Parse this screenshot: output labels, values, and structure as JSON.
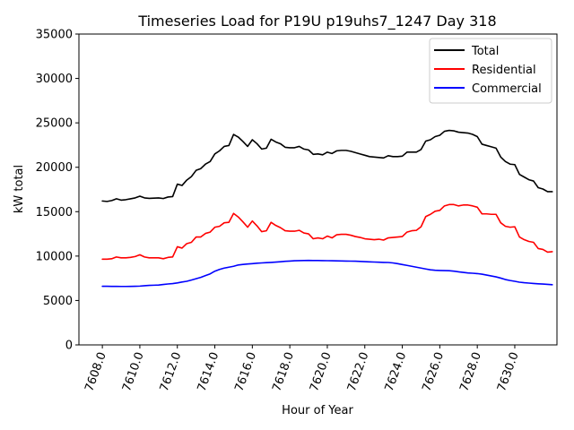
{
  "chart_data": {
    "type": "line",
    "title": "Timeseries Load for P19U p19uhs7_1247  Day 318",
    "xlabel": "Hour of Year",
    "ylabel": "kW total",
    "xlim": [
      7606.75,
      7632.25
    ],
    "ylim": [
      0,
      35000
    ],
    "xticks": [
      7608,
      7610,
      7612,
      7614,
      7616,
      7618,
      7620,
      7622,
      7624,
      7626,
      7628,
      7630
    ],
    "xtick_labels": [
      "7608.0",
      "7610.0",
      "7612.0",
      "7614.0",
      "7616.0",
      "7618.0",
      "7620.0",
      "7622.0",
      "7624.0",
      "7626.0",
      "7628.0",
      "7630.0"
    ],
    "yticks": [
      0,
      5000,
      10000,
      15000,
      20000,
      25000,
      30000,
      35000
    ],
    "ytick_labels": [
      "0",
      "5000",
      "10000",
      "15000",
      "20000",
      "25000",
      "30000",
      "35000"
    ],
    "grid": false,
    "legend_position": "top-right",
    "x_start": 7608,
    "x_step": 0.25,
    "series": [
      {
        "name": "Total",
        "color": "#000000",
        "values": [
          16200,
          16150,
          16250,
          16450,
          16300,
          16350,
          16450,
          16550,
          16750,
          16550,
          16500,
          16520,
          16550,
          16480,
          16650,
          16700,
          18100,
          17950,
          18550,
          18950,
          19650,
          19850,
          20350,
          20650,
          21500,
          21850,
          22350,
          22450,
          23700,
          23400,
          22900,
          22350,
          23100,
          22650,
          22050,
          22150,
          23150,
          22850,
          22650,
          22250,
          22200,
          22200,
          22350,
          22050,
          21950,
          21450,
          21500,
          21400,
          21700,
          21550,
          21850,
          21900,
          21900,
          21800,
          21650,
          21500,
          21350,
          21200,
          21150,
          21100,
          21050,
          21300,
          21200,
          21200,
          21250,
          21700,
          21700,
          21700,
          22000,
          22950,
          23100,
          23450,
          23600,
          24050,
          24150,
          24100,
          23950,
          23900,
          23850,
          23700,
          23450,
          22600,
          22450,
          22300,
          22150,
          21150,
          20650,
          20350,
          20300,
          19200,
          18900,
          18600,
          18450,
          17700,
          17550,
          17250,
          17250
        ]
      },
      {
        "name": "Residential",
        "color": "#ff0000",
        "values": [
          9650,
          9650,
          9700,
          9900,
          9800,
          9800,
          9850,
          9950,
          10150,
          9900,
          9800,
          9800,
          9800,
          9700,
          9850,
          9900,
          11050,
          10900,
          11400,
          11550,
          12150,
          12150,
          12550,
          12700,
          13250,
          13350,
          13750,
          13800,
          14800,
          14400,
          13850,
          13250,
          13950,
          13400,
          12750,
          12850,
          13800,
          13450,
          13200,
          12850,
          12800,
          12800,
          12900,
          12600,
          12500,
          11950,
          12050,
          11950,
          12250,
          12050,
          12400,
          12450,
          12450,
          12350,
          12200,
          12100,
          11950,
          11900,
          11850,
          11900,
          11800,
          12050,
          12100,
          12150,
          12200,
          12700,
          12850,
          12900,
          13300,
          14450,
          14700,
          15050,
          15150,
          15650,
          15800,
          15800,
          15650,
          15750,
          15750,
          15650,
          15500,
          14750,
          14750,
          14700,
          14700,
          13750,
          13350,
          13250,
          13300,
          12150,
          11850,
          11650,
          11550,
          10850,
          10750,
          10450,
          10500
        ]
      },
      {
        "name": "Commercial",
        "color": "#0000ff",
        "values": [
          6600,
          6600,
          6590,
          6590,
          6580,
          6580,
          6590,
          6600,
          6620,
          6660,
          6700,
          6720,
          6740,
          6800,
          6860,
          6900,
          6980,
          7080,
          7160,
          7300,
          7450,
          7600,
          7800,
          8000,
          8300,
          8500,
          8650,
          8750,
          8850,
          9000,
          9060,
          9110,
          9150,
          9200,
          9230,
          9260,
          9290,
          9320,
          9360,
          9410,
          9440,
          9470,
          9490,
          9500,
          9510,
          9500,
          9500,
          9490,
          9480,
          9470,
          9460,
          9450,
          9440,
          9430,
          9420,
          9400,
          9370,
          9350,
          9330,
          9310,
          9290,
          9280,
          9230,
          9150,
          9050,
          8950,
          8850,
          8750,
          8650,
          8550,
          8450,
          8400,
          8380,
          8370,
          8350,
          8300,
          8230,
          8160,
          8100,
          8070,
          8030,
          7960,
          7860,
          7760,
          7660,
          7520,
          7360,
          7250,
          7160,
          7060,
          7000,
          6960,
          6920,
          6880,
          6850,
          6810,
          6780
        ]
      }
    ]
  }
}
